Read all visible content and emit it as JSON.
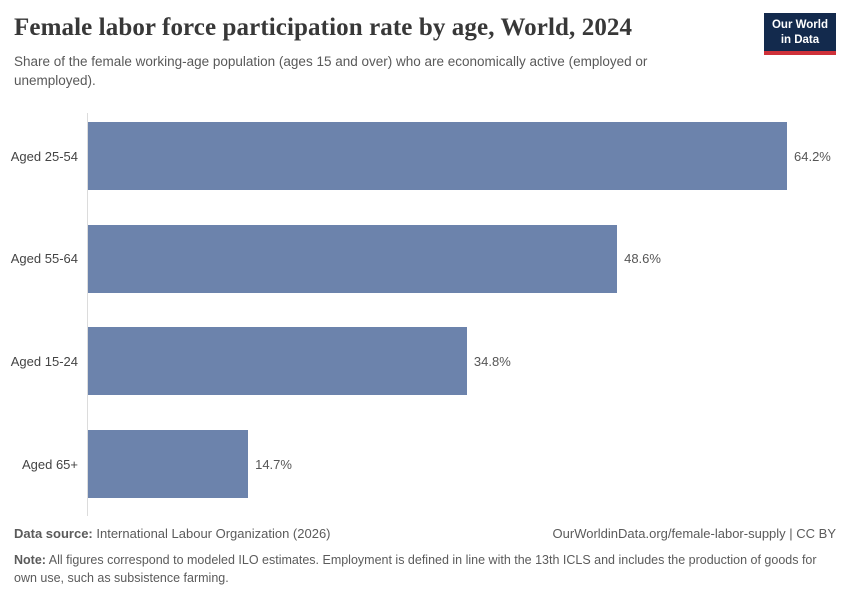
{
  "header": {
    "title": "Female labor force participation rate by age, World, 2024",
    "subtitle": "Share of the female working-age population (ages 15 and over) who are economically active (employed or unemployed).",
    "logo_line1": "Our World",
    "logo_line2": "in Data"
  },
  "chart_data": {
    "type": "bar",
    "orientation": "horizontal",
    "title": "Female labor force participation rate by age, World, 2024",
    "categories": [
      "Aged 25-54",
      "Aged 55-64",
      "Aged 15-24",
      "Aged 65+"
    ],
    "values": [
      64.2,
      48.6,
      34.8,
      14.7
    ],
    "value_labels": [
      "64.2%",
      "48.6%",
      "34.8%",
      "14.7%"
    ],
    "xlabel": "",
    "ylabel": "",
    "xlim": [
      0,
      64.2
    ],
    "grid": false,
    "legend": "none",
    "bar_color": "#6c83ac"
  },
  "footer": {
    "data_source_label": "Data source:",
    "data_source_value": " International Labour Organization (2026)",
    "url_credit": "OurWorldinData.org/female-labor-supply | CC BY",
    "note_label": "Note:",
    "note_text": " All figures correspond to modeled ILO estimates. Employment is defined in line with the 13th ICLS and includes the production of goods for own use, such as subsistence farming."
  },
  "colors": {
    "bar": "#6c83ac",
    "logo_bg": "#132a4d",
    "logo_stripe": "#cf3139",
    "axis": "#dcdcdc"
  }
}
